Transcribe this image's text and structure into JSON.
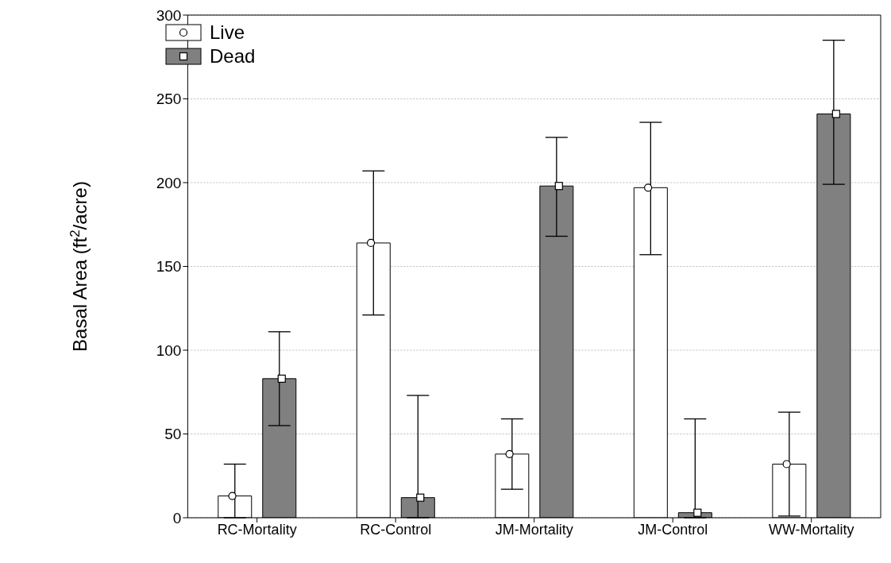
{
  "chart_data": {
    "type": "bar",
    "ylabel": "Basal Area (ft$^{2}$/acre)",
    "categories": [
      "RC-Mortality",
      "RC-Control",
      "JM-Mortality",
      "JM-Control",
      "WW-Mortality"
    ],
    "series": [
      {
        "name": "Live",
        "color": "#ffffff",
        "values": [
          13,
          164,
          38,
          197,
          32
        ],
        "errors": [
          [
            0,
            32
          ],
          [
            121,
            207
          ],
          [
            17,
            59
          ],
          [
            157,
            236
          ],
          [
            1,
            63
          ]
        ]
      },
      {
        "name": "Dead",
        "color": "#808080",
        "values": [
          83,
          12,
          198,
          3,
          241
        ],
        "errors": [
          [
            55,
            111
          ],
          [
            0,
            73
          ],
          [
            168,
            227
          ],
          [
            0,
            59
          ],
          [
            199,
            285
          ]
        ]
      },
      {
        "type": "scatter",
        "color": "#ffffff",
        "marker": "circle",
        "x": [
          "RC-Mortality",
          "RC-Control",
          "JM-Mortality",
          "JM-Control",
          "WW-Mortality"
        ],
        "values": [
          13,
          164,
          38,
          197,
          32
        ]
      },
      {
        "type": "scatter",
        "color": "#ffffff",
        "marker": "square",
        "x": [
          "RC-Mortality",
          "RC-Control",
          "JM-Mortality",
          "JM-Control",
          "WW-Mortality"
        ],
        "values": [
          83,
          12,
          198,
          3,
          241
        ]
      }
    ],
    "ylim": [
      0,
      300
    ],
    "yticks": [
      0,
      50,
      100,
      150,
      200,
      250,
      300
    ],
    "grid": "y",
    "legend": "top left"
  }
}
